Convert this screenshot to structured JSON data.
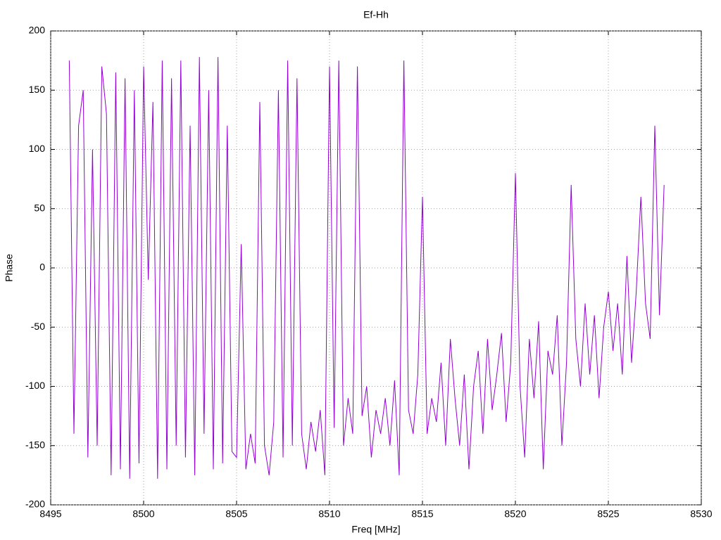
{
  "chart_data": {
    "type": "line",
    "title": "Ef-Hh",
    "x_label": "Freq [MHz]",
    "y_label": "Phase",
    "xlim": [
      8495,
      8530
    ],
    "xticks": [
      8495,
      8500,
      8505,
      8510,
      8515,
      8520,
      8525,
      8530
    ],
    "ylim": [
      -200,
      200
    ],
    "yticks": [
      -200,
      -150,
      -100,
      -50,
      0,
      50,
      100,
      150,
      200
    ],
    "grid": true,
    "series": [
      {
        "color": "#9400d3",
        "x": [
          8496,
          8496.25,
          8496.5,
          8496.75,
          8497,
          8497.25,
          8497.5,
          8497.75,
          8498,
          8498.25,
          8498.5,
          8498.75,
          8499,
          8499.25,
          8499.5,
          8499.75,
          8500,
          8500.25,
          8500.5,
          8500.75,
          8501,
          8501.25,
          8501.5,
          8501.75,
          8502,
          8502.25,
          8502.5,
          8502.75,
          8503,
          8503.25,
          8503.5,
          8503.75,
          8504,
          8504.25,
          8504.5,
          8504.75,
          8505,
          8505.25,
          8505.5,
          8505.75,
          8506,
          8506.25,
          8506.5,
          8506.75,
          8507,
          8507.25,
          8507.5,
          8507.75,
          8508,
          8508.25,
          8508.5,
          8508.75,
          8509,
          8509.25,
          8509.5,
          8509.75,
          8510,
          8510.25,
          8510.5,
          8510.75,
          8511,
          8511.25,
          8511.5,
          8511.75,
          8512,
          8512.25,
          8512.5,
          8512.75,
          8513,
          8513.25,
          8513.5,
          8513.75,
          8514,
          8514.25,
          8514.5,
          8514.75,
          8515,
          8515.25,
          8515.5,
          8515.75,
          8516,
          8516.25,
          8516.5,
          8516.75,
          8517,
          8517.25,
          8517.5,
          8517.75,
          8518,
          8518.25,
          8518.5,
          8518.75,
          8519,
          8519.25,
          8519.5,
          8519.75,
          8520,
          8520.25,
          8520.5,
          8520.75,
          8521,
          8521.25,
          8521.5,
          8521.75,
          8522,
          8522.25,
          8522.5,
          8522.75,
          8523,
          8523.25,
          8523.5,
          8523.75,
          8524,
          8524.25,
          8524.5,
          8524.75,
          8525,
          8525.25,
          8525.5,
          8525.75,
          8526,
          8526.25,
          8526.5,
          8526.75,
          8527,
          8527.25,
          8527.5,
          8527.75,
          8528
        ],
        "values": [
          175,
          -140,
          120,
          150,
          -160,
          100,
          -150,
          170,
          130,
          -175,
          165,
          -170,
          160,
          -178,
          150,
          -165,
          170,
          -10,
          140,
          -178,
          175,
          -170,
          160,
          -150,
          175,
          -160,
          120,
          -175,
          178,
          -140,
          150,
          -170,
          178,
          -165,
          120,
          -155,
          -160,
          20,
          -170,
          -140,
          -165,
          140,
          -150,
          -175,
          -130,
          150,
          -160,
          175,
          -150,
          160,
          -140,
          -170,
          -130,
          -155,
          -120,
          -175,
          170,
          -135,
          175,
          -150,
          -110,
          -140,
          170,
          -125,
          -100,
          -160,
          -120,
          -140,
          -110,
          -150,
          -95,
          -175,
          175,
          -120,
          -140,
          -90,
          60,
          -140,
          -110,
          -130,
          -80,
          -150,
          -60,
          -110,
          -150,
          -90,
          -170,
          -100,
          -70,
          -140,
          -60,
          -120,
          -90,
          -55,
          -130,
          -80,
          80,
          -100,
          -160,
          -60,
          -110,
          -45,
          -170,
          -70,
          -90,
          -40,
          -150,
          -80,
          70,
          -60,
          -100,
          -30,
          -90,
          -40,
          -110,
          -50,
          -20,
          -70,
          -30,
          -90,
          10,
          -80,
          -20,
          60,
          -30,
          -60,
          120,
          -40,
          70
        ]
      }
    ]
  }
}
